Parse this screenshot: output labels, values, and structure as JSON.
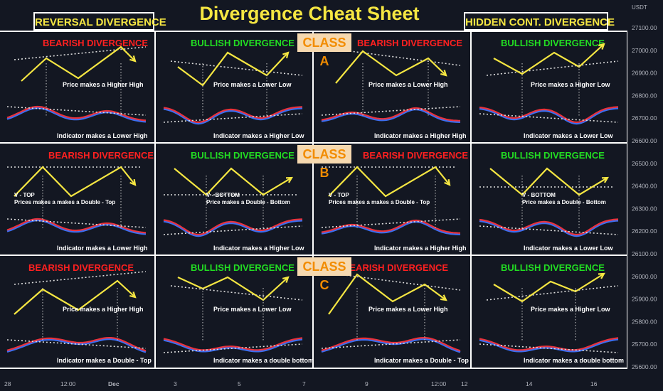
{
  "title": "Divergence Cheat Sheet",
  "header_left": "REVERSAL DIVERGENCE",
  "header_right": "HIDDEN CONT. DIVERGENCE",
  "class_labels": [
    "CLASS A",
    "CLASS B",
    "CLASS C"
  ],
  "price_axis": {
    "currency": "USDT",
    "ticks": [
      "27100.00",
      "27000.00",
      "26900.00",
      "26800.00",
      "26700.00",
      "26600.00",
      "26500.00",
      "26400.00",
      "26300.00",
      "26200.00",
      "26100.00",
      "26000.00",
      "25900.00",
      "25800.00",
      "25700.00",
      "25600.00"
    ]
  },
  "time_axis": {
    "ticks": [
      "28",
      "12:00",
      "Dec",
      "3",
      "5",
      "7",
      "9",
      "12:00",
      "12",
      "14",
      "16"
    ]
  },
  "colors": {
    "background": "#131722",
    "price_line": "#f5e642",
    "bearish_title": "#ff2020",
    "bullish_title": "#22dd22",
    "indicator_red": "#e8323c",
    "indicator_blue": "#3c6ef0",
    "header_text": "#f5e642",
    "class_bg": "#f6d9b0",
    "class_text": "#f28c00"
  },
  "chart_data": {
    "type": "table",
    "rows": [
      {
        "class": "CLASS A",
        "cells": [
          {
            "title": "BEARISH DIVERGENCE",
            "kind": "bearish",
            "price_text": "Price makes a Higher High",
            "indicator_text": "Indicator makes a Lower High"
          },
          {
            "title": "BULLISH DIVERGENCE",
            "kind": "bullish",
            "price_text": "Price makes a Lower Low",
            "indicator_text": "Indicator makes a Higher Low"
          },
          {
            "title": "BEARISH DIVERGENCE",
            "kind": "bearish",
            "price_text": "Price makes a Lower High",
            "indicator_text": "Indicator makes a Higher High"
          },
          {
            "title": "BULLISH DIVERGENCE",
            "kind": "bullish",
            "price_text": "Price makes a Higher Low",
            "indicator_text": "Indicator makes a Lower Low"
          }
        ]
      },
      {
        "class": "CLASS B",
        "cells": [
          {
            "title": "BEARISH DIVERGENCE",
            "kind": "bearish",
            "price_text": "V - TOP\nPrices makes a makes a Double - Top",
            "indicator_text": "Indicator makes a Lower High"
          },
          {
            "title": "BULLISH DIVERGENCE",
            "kind": "bullish",
            "price_text": "V - BOTTOM\nPrice makes a Double - Bottom",
            "indicator_text": "Indicator makes a Higher Low"
          },
          {
            "title": "BEARISH DIVERGENCE",
            "kind": "bearish",
            "price_text": "V - TOP\nPrices makes a makes a Double - Top",
            "indicator_text": "Indicator makes a Higher High"
          },
          {
            "title": "BULLISH DIVERGENCE",
            "kind": "bullish",
            "price_text": "V - BOTTOM\nPrice makes a Double - Bottom",
            "indicator_text": "Indicator makes a Lower Low"
          }
        ]
      },
      {
        "class": "CLASS C",
        "cells": [
          {
            "title": "BEARISH DIVERGENCE",
            "kind": "bearish",
            "price_text": "Price makes a Higher High",
            "indicator_text": "Indicator makes a Double - Top"
          },
          {
            "title": "BULLISH DIVERGENCE",
            "kind": "bullish",
            "price_text": "Price makes a Lower Low",
            "indicator_text": "Indicator makes a double bottom"
          },
          {
            "title": "BEARISH DIVERGENCE",
            "kind": "bearish",
            "price_text": "Price makes a Lower High",
            "indicator_text": "Indicator makes a Double - Top"
          },
          {
            "title": "BULLISH DIVERGENCE",
            "kind": "bullish",
            "price_text": "Price makes a Higher Low",
            "indicator_text": "Indicator makes a double bottom"
          }
        ]
      }
    ]
  }
}
